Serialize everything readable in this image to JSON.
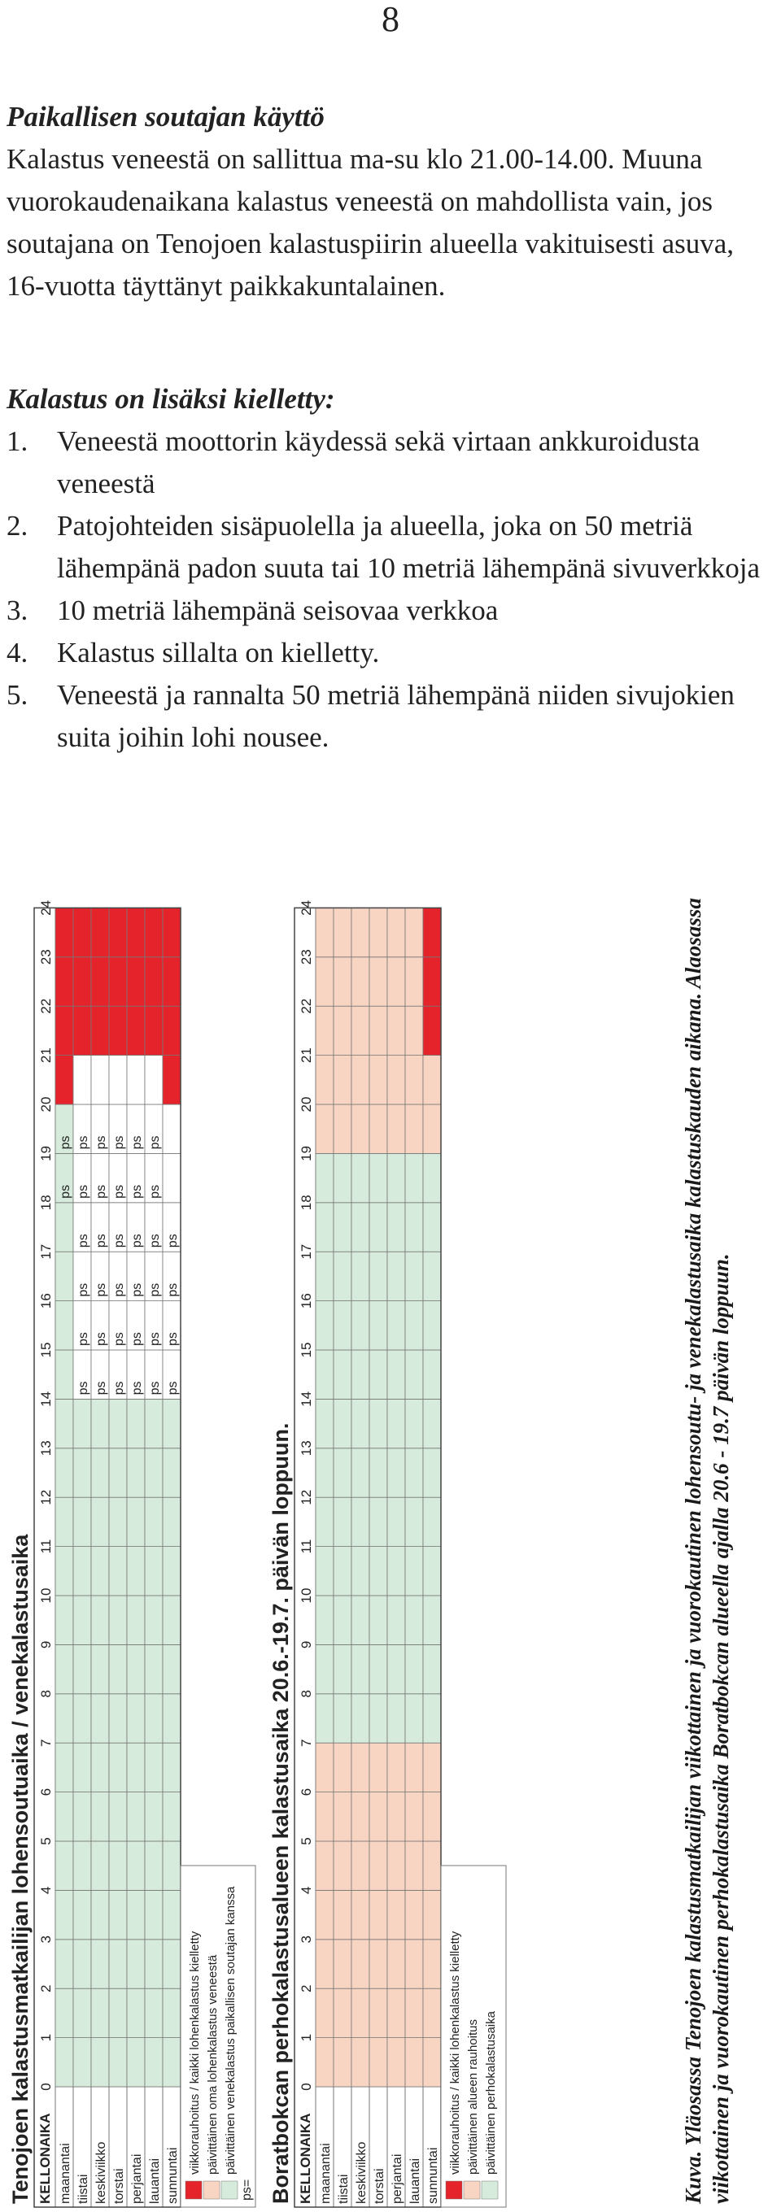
{
  "page_number": "8",
  "section": {
    "heading": "Paikallisen soutajan käyttö",
    "paragraph": "Kalastus veneestä on sallittua ma-su klo 21.00-14.00. Muuna vuorokaudenaikana kalastus veneestä on mahdollista vain, jos soutajana on Tenojoen kalastuspiirin alueella vakituisesti asuva, 16-vuotta täyttänyt paikkakuntalainen."
  },
  "prohibited": {
    "heading": "Kalastus on lisäksi kielletty:",
    "items": [
      {
        "num": "1.",
        "text": "Veneestä moottorin käydessä sekä virtaan ankkuroidusta veneestä"
      },
      {
        "num": "2.",
        "text": "Patojohteiden sisäpuolella ja alueella, joka on 50 metriä lähempänä padon suuta tai 10 metriä lähempänä sivuverkkoja"
      },
      {
        "num": "3.",
        "text": "10 metriä lähempänä seisovaa verkkoa"
      },
      {
        "num": "4.",
        "text": "Kalastus sillalta on kielletty."
      },
      {
        "num": "5.",
        "text": "Veneestä ja rannalta 50 metriä lähempänä niiden sivujokien suita joihin lohi nousee."
      }
    ]
  },
  "colors": {
    "red": "#e5232b",
    "green": "#d6ebdb",
    "peach": "#f8d5c2",
    "white": "#ffffff",
    "grid": "#777777"
  },
  "tables": [
    {
      "title": "Tenojoen kalastusmatkailijan lohensoutuaika / venekalastusaika",
      "clock_label": "KELLONAIKA",
      "hours": [
        "0",
        "1",
        "2",
        "3",
        "4",
        "5",
        "6",
        "7",
        "8",
        "9",
        "10",
        "11",
        "12",
        "13",
        "14",
        "15",
        "16",
        "17",
        "18",
        "19",
        "20",
        "21",
        "22",
        "23",
        "24"
      ],
      "days": [
        {
          "name": "maanantai",
          "cells": "GGGGGGGGGGGGGGGGGGGGRRRR"
        },
        {
          "name": "tiistai",
          "cells": "GGGGGGGGGGGGGGWWWWWWWRRR"
        },
        {
          "name": "keskiviikko",
          "cells": "GGGGGGGGGGGGGGWWWWWWWRRR"
        },
        {
          "name": "torstai",
          "cells": "GGGGGGGGGGGGGGWWWWWWWRRR"
        },
        {
          "name": "perjantai",
          "cells": "GGGGGGGGGGGGGGWWWWWWWRRR"
        },
        {
          "name": "lauantai",
          "cells": "GGGGGGGGGGGGGGWWWWWWWRRR"
        },
        {
          "name": "sunnuntai",
          "cells": "GGGGGGGGGGGGGGWWWWWWRRRR"
        }
      ],
      "ps_marker": "ps",
      "ps_ranges": [
        [
          18,
          20
        ],
        [
          14,
          20
        ],
        [
          14,
          20
        ],
        [
          14,
          20
        ],
        [
          14,
          20
        ],
        [
          14,
          20
        ],
        [
          14,
          18
        ]
      ],
      "legend": [
        {
          "color": "red",
          "text": "viikkorauhoitus / kaikki lohenkalastus kielletty"
        },
        {
          "color": "peach",
          "text": "päivittäinen oma lohenkalastus veneestä"
        },
        {
          "color": "green",
          "text": "päivittäinen venekalastus paikallisen soutajan kanssa"
        }
      ],
      "ps_legend": "ps="
    },
    {
      "title": "Boratbokcan perhokalastusalueen kalastusaika 20.6.-19.7. päivän loppuun.",
      "clock_label": "KELLONAIKA",
      "hours": [
        "0",
        "1",
        "2",
        "3",
        "4",
        "5",
        "6",
        "7",
        "8",
        "9",
        "10",
        "11",
        "12",
        "13",
        "14",
        "15",
        "16",
        "17",
        "18",
        "19",
        "20",
        "21",
        "22",
        "23",
        "24"
      ],
      "days": [
        {
          "name": "maanantai",
          "cells": "PPPPPPPGGGGGGGGGGGGPPPPP"
        },
        {
          "name": "tiistai",
          "cells": "PPPPPPPGGGGGGGGGGGGPPPPP"
        },
        {
          "name": "keskiviikko",
          "cells": "PPPPPPPGGGGGGGGGGGGPPPPP"
        },
        {
          "name": "torstai",
          "cells": "PPPPPPPGGGGGGGGGGGGPPPPP"
        },
        {
          "name": "perjantai",
          "cells": "PPPPPPPGGGGGGGGGGGGPPPPP"
        },
        {
          "name": "lauantai",
          "cells": "PPPPPPPGGGGGGGGGGGGPPPPP"
        },
        {
          "name": "sunnuntai",
          "cells": "PPPPPPPGGGGGGGGGGGGPPRRR"
        }
      ],
      "legend": [
        {
          "color": "red",
          "text": "viikkorauhoitus / kaikki lohenkalastus kielletty"
        },
        {
          "color": "peach",
          "text": "päivittäinen alueen rauhoitus"
        },
        {
          "color": "green",
          "text": "päivittäinen perhokalastusaika"
        }
      ]
    }
  ],
  "caption": "Kuva. Yläosassa Tenojoen kalastusmatkailijan viikottainen ja vuorokautinen lohensoutu- ja venekalastusaika kalastuskauden aikana. Alaosassa viikottainen ja vuorokautinen perhokalastusaika Boratbokcan alueella ajalla 20.6 - 19.7 päivän loppuun."
}
